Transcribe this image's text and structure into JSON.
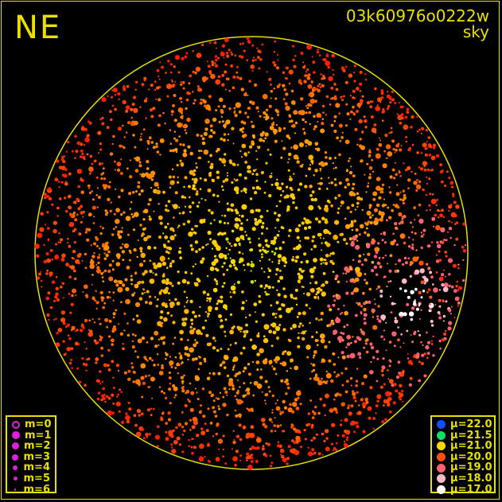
{
  "header": {
    "direction": "NE",
    "image_id": "03k60976o0222w",
    "mode": "sky"
  },
  "magnitude_legend": [
    {
      "label": "m=0",
      "size": 0,
      "hollow": true
    },
    {
      "label": "m=1",
      "size": 1
    },
    {
      "label": "m=2",
      "size": 2
    },
    {
      "label": "m=3",
      "size": 3
    },
    {
      "label": "m=4",
      "size": 4
    },
    {
      "label": "m=5",
      "size": 5
    },
    {
      "label": "m=6",
      "size": 6
    }
  ],
  "magnitude_color": "#e020e0",
  "brightness_legend": [
    {
      "label": "μ=22.0",
      "color": "#1050ff"
    },
    {
      "label": "μ=21.5",
      "color": "#10e060"
    },
    {
      "label": "μ=21.0",
      "color": "#ffd800"
    },
    {
      "label": "μ=20.0",
      "color": "#ff5010"
    },
    {
      "label": "μ=19.0",
      "color": "#ff6070"
    },
    {
      "label": "μ=18.0",
      "color": "#ffb8c8"
    },
    {
      "label": "μ=17.0",
      "color": "#ffffff"
    }
  ],
  "accent_color": "#e8e000"
}
